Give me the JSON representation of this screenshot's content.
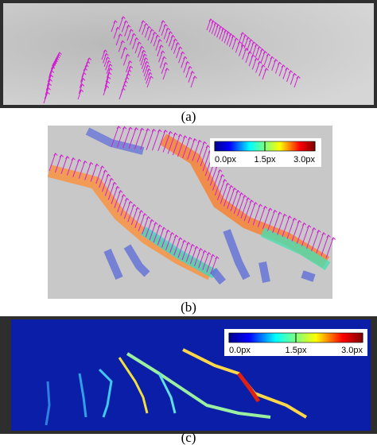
{
  "panels": [
    {
      "caption": "(a)"
    },
    {
      "caption": "(b)",
      "colorbar": {
        "ticks": [
          {
            "value": 0,
            "label": "0.0px"
          },
          {
            "value": 1.5,
            "label": "1.5px"
          },
          {
            "value": 3,
            "label": "3.0px"
          }
        ]
      }
    },
    {
      "caption": "(c)",
      "colorbar": {
        "ticks": [
          {
            "value": 0,
            "label": "0.0px"
          },
          {
            "value": 1.5,
            "label": "1.5px"
          },
          {
            "value": 3,
            "label": "3.0px"
          }
        ]
      }
    }
  ]
}
